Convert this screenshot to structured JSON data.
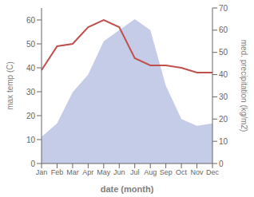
{
  "chart_data": {
    "type": "line",
    "xlabel": "date (month)",
    "ylabel": "max temp (C)",
    "y2label": "med. precipitation (kg/m2)",
    "categories": [
      "Jan",
      "Feb",
      "Mar",
      "Apr",
      "May",
      "Jun",
      "Jul",
      "Aug",
      "Sep",
      "Oct",
      "Nov",
      "Dec"
    ],
    "series": [
      {
        "type": "area",
        "axis": "y2",
        "color": "#c5cce8",
        "values": [
          12,
          18,
          32,
          40,
          55,
          60,
          65,
          60,
          35,
          20,
          17,
          18
        ]
      },
      {
        "type": "line",
        "axis": "y",
        "color": "#c0504d",
        "values": [
          39,
          49,
          50,
          57,
          60,
          57,
          44,
          41,
          41,
          40,
          38,
          38
        ]
      }
    ],
    "ylim": [
      0,
      65
    ],
    "yticks": [
      0,
      10,
      20,
      30,
      40,
      50,
      60
    ],
    "y2lim": [
      0,
      70
    ],
    "y2ticks": [
      0,
      10,
      20,
      30,
      40,
      50,
      60,
      70
    ],
    "grid": false
  }
}
